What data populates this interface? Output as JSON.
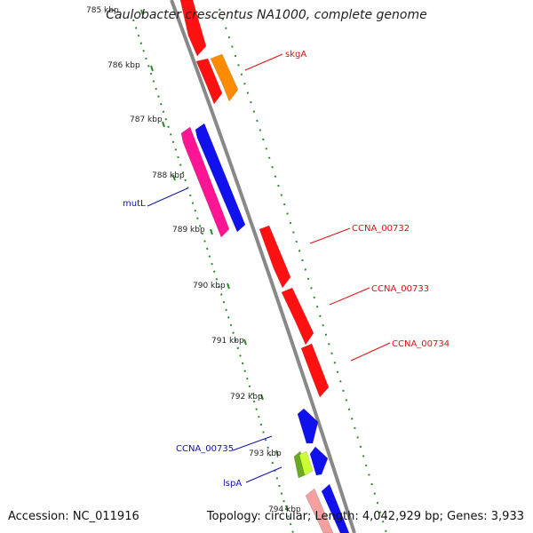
{
  "title": "Caulobacter crescentus NA1000, complete genome",
  "footer": {
    "accession": "Accession: NC_011916",
    "summary": "Topology: circular; Length: 4,042,929 bp; Genes: 3,933"
  },
  "colors": {
    "backbone": "#888888",
    "tick": "#2e8b2e",
    "forward_label": "#dd1111",
    "reverse_label": "#1111aa"
  },
  "scale_labels": [
    "785 kbp",
    "786 kbp",
    "787 kbp",
    "788 kbp",
    "789 kbp",
    "790 kbp",
    "791 kbp",
    "792 kbp",
    "793 kbp",
    "794 kbp"
  ],
  "genes": [
    {
      "id": "top-red",
      "strand": "forward",
      "color": "#ff1111"
    },
    {
      "id": "red-786",
      "strand": "forward",
      "color": "#ff1111"
    },
    {
      "id": "skgA",
      "strand": "forward",
      "color": "#ff8c00"
    },
    {
      "id": "mutL",
      "strand": "reverse",
      "color": "#ff1493"
    },
    {
      "id": "blue-787",
      "strand": "reverse",
      "color": "#1111ee"
    },
    {
      "id": "CCNA_00732",
      "strand": "forward",
      "color": "#ff1111"
    },
    {
      "id": "CCNA_00733",
      "strand": "forward",
      "color": "#ff1111"
    },
    {
      "id": "CCNA_00734",
      "strand": "forward",
      "color": "#ff1111"
    },
    {
      "id": "blue-792",
      "strand": "reverse",
      "color": "#1111ee"
    },
    {
      "id": "CCNA_00735",
      "strand": "reverse",
      "color": "#1111ee"
    },
    {
      "id": "lspA-a",
      "strand": "reverse",
      "color": "#6aa820"
    },
    {
      "id": "lspA-b",
      "strand": "reverse",
      "color": "#ccff33"
    },
    {
      "id": "pink-794",
      "strand": "reverse",
      "color": "#f4a0a0"
    },
    {
      "id": "blue-794",
      "strand": "reverse",
      "color": "#1111ee"
    }
  ],
  "gene_labels": [
    {
      "text": "skgA",
      "side": "forward"
    },
    {
      "text": "mutL",
      "side": "reverse"
    },
    {
      "text": "CCNA_00732",
      "side": "forward"
    },
    {
      "text": "CCNA_00733",
      "side": "forward"
    },
    {
      "text": "CCNA_00734",
      "side": "forward"
    },
    {
      "text": "CCNA_00735",
      "side": "reverse"
    },
    {
      "text": "lspA",
      "side": "reverse"
    }
  ]
}
